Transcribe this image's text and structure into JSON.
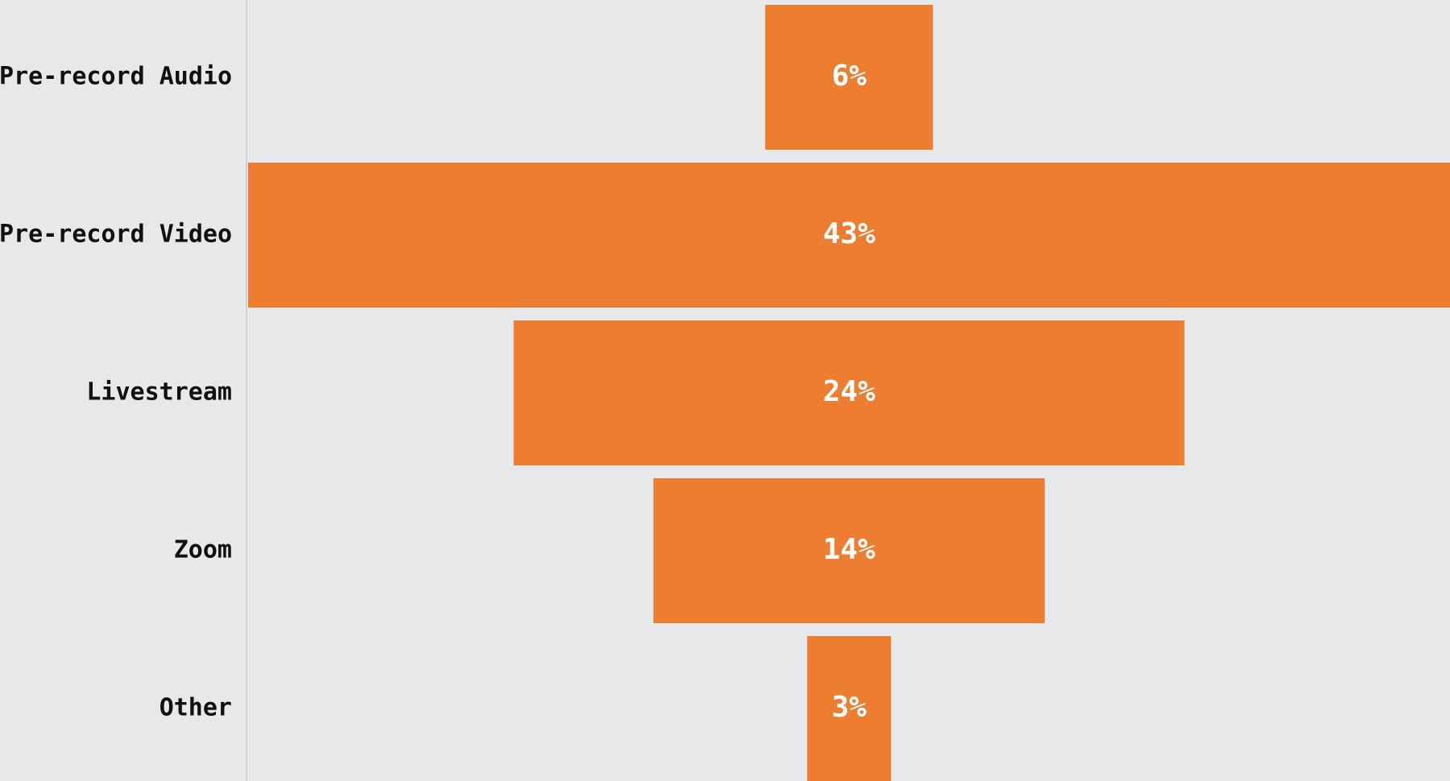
{
  "chart_data": {
    "type": "funnel",
    "categories": [
      "Pre-record Audio",
      "Pre-record Video",
      "Livestream",
      "Zoom",
      "Other"
    ],
    "values": [
      6,
      43,
      24,
      14,
      3
    ],
    "value_labels": [
      "6%",
      "43%",
      "24%",
      "14%",
      "3%"
    ],
    "color": "#ed7d31"
  }
}
